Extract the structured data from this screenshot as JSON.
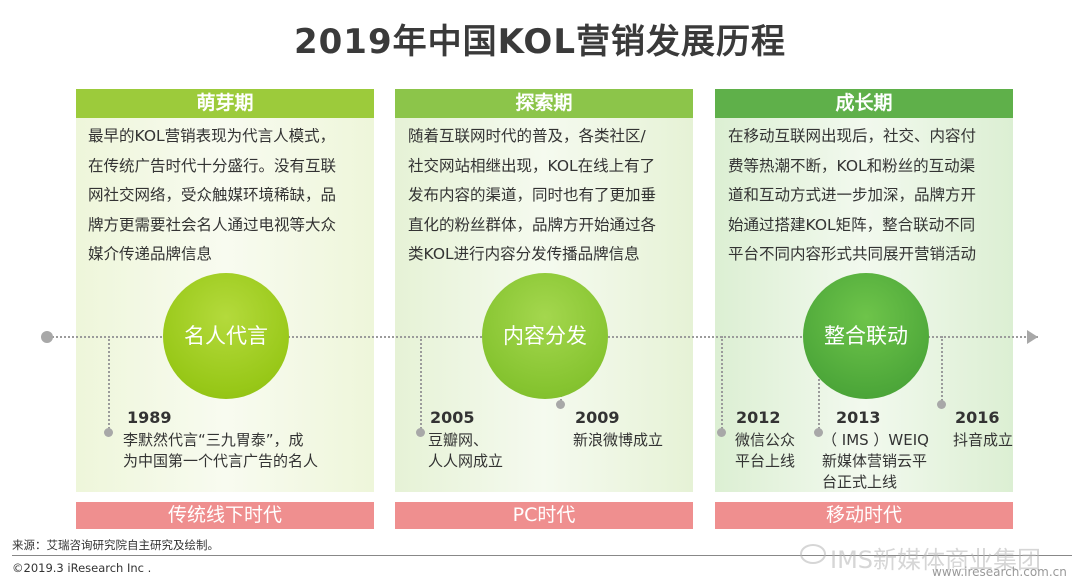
{
  "title": "2019年中国KOL营销发展历程",
  "phases": [
    {
      "name": "萌芽期",
      "description_lines": [
        "最早的KOL营销表现为代言人模式，",
        "在传统广告时代十分盛行。没有互联",
        "网社交网络，受众触媒环境稀缺，品",
        "牌方更需要社会名人通过电视等大众",
        "媒介传递品牌信息"
      ],
      "circle": "名人代言",
      "events": [
        {
          "year": "1989",
          "text": [
            "李默然代言“三九胃泰”，成",
            "为中国第一个代言广告的名人"
          ]
        }
      ],
      "era": "传统线下时代"
    },
    {
      "name": "探索期",
      "description_lines": [
        "随着互联网时代的普及，各类社区/",
        "社交网站相继出现，KOL在线上有了",
        "发布内容的渠道，同时也有了更加垂",
        "直化的粉丝群体，品牌方开始通过各",
        "类KOL进行内容分发传播品牌信息"
      ],
      "circle": "内容分发",
      "events": [
        {
          "year": "2005",
          "text": [
            "豆瓣网、",
            "人人网成立"
          ]
        },
        {
          "year": "2009",
          "text": [
            "新浪微博成立"
          ]
        }
      ],
      "era": "PC时代"
    },
    {
      "name": "成长期",
      "description_lines": [
        "在移动互联网出现后，社交、内容付",
        "费等热潮不断，KOL和粉丝的互动渠",
        "道和互动方式进一步加深，品牌方开",
        "始通过搭建KOL矩阵，整合联动不同",
        "平台不同内容形式共同展开营销活动"
      ],
      "circle": "整合联动",
      "events": [
        {
          "year": "2012",
          "text": [
            "微信公众",
            "平台上线"
          ]
        },
        {
          "year": "2013",
          "text": [
            "（ IMS ）WEIQ",
            "新媒体营销云平",
            "台正式上线"
          ]
        },
        {
          "year": "2016",
          "text": [
            "抖音成立"
          ]
        }
      ],
      "era": "移动时代"
    }
  ],
  "footer": {
    "source": "来源：艾瑞咨询研究院自主研究及绘制。",
    "copyright": "©2019.3 iResearch Inc .",
    "watermark": "IMS新媒体商业集团",
    "site": "www.iresearch.com.cn"
  },
  "colors": {
    "phase1": "#9ccb3b",
    "phase2": "#8cc54a",
    "phase3": "#5fb04a",
    "era": "#ef8f8f"
  }
}
